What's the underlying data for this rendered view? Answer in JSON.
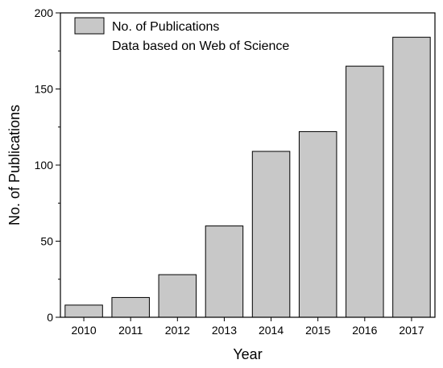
{
  "chart_data": {
    "type": "bar",
    "categories": [
      "2010",
      "2011",
      "2012",
      "2013",
      "2014",
      "2015",
      "2016",
      "2017"
    ],
    "series": [
      {
        "name": "No. of Publications",
        "values": [
          8,
          13,
          28,
          60,
          109,
          122,
          165,
          184
        ]
      }
    ],
    "values": [
      8,
      13,
      28,
      60,
      109,
      122,
      165,
      184
    ],
    "xlabel": "Year",
    "ylabel": "No. of Publications",
    "ylim": [
      0,
      200
    ],
    "yticks": [
      "0",
      "50",
      "100",
      "150",
      "200"
    ],
    "legend": {
      "entries": [
        "No. of Publications",
        "Data based on Web of Science"
      ],
      "position": "top-left"
    },
    "grid": false,
    "colors": {
      "bar_fill": "#c8c8c8",
      "bar_stroke": "#000000",
      "axis": "#000000"
    }
  }
}
